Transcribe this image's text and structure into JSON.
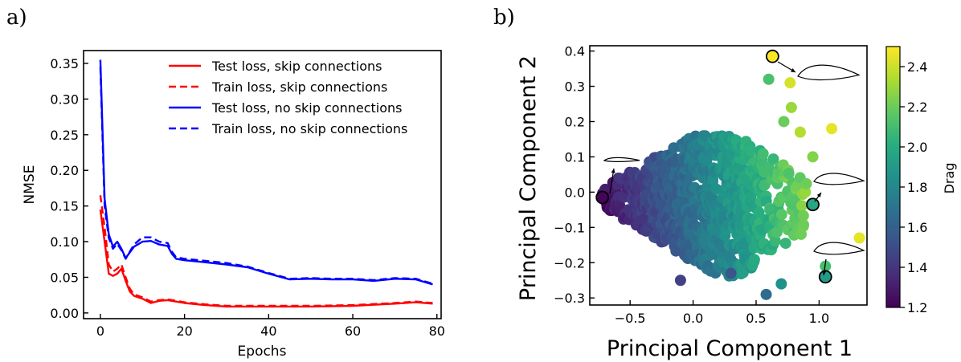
{
  "chart_data": [
    {
      "type": "line",
      "panel_label": "a)",
      "xlabel": "Epochs",
      "ylabel": "NMSE",
      "xlim": [
        -4,
        81
      ],
      "ylim": [
        -0.008,
        0.368
      ],
      "xticks": [
        0,
        20,
        40,
        60,
        80
      ],
      "yticks": [
        0.0,
        0.05,
        0.1,
        0.15,
        0.2,
        0.25,
        0.3,
        0.35
      ],
      "ytick_labels": [
        "0.00",
        "0.05",
        "0.10",
        "0.15",
        "0.20",
        "0.25",
        "0.30",
        "0.35"
      ],
      "grid": false,
      "legend": "top-right",
      "series": [
        {
          "name": "Test loss, skip connections",
          "color": "#ff0000",
          "dash": "solid",
          "x": [
            0,
            1,
            2,
            3,
            4,
            5,
            6,
            7,
            8,
            10,
            12,
            14,
            16,
            18,
            20,
            25,
            30,
            40,
            50,
            60,
            70,
            75,
            79
          ],
          "y": [
            0.145,
            0.1,
            0.055,
            0.052,
            0.055,
            0.062,
            0.045,
            0.03,
            0.024,
            0.02,
            0.014,
            0.017,
            0.018,
            0.016,
            0.014,
            0.011,
            0.009,
            0.009,
            0.009,
            0.01,
            0.013,
            0.015,
            0.013
          ]
        },
        {
          "name": "Train loss, skip connections",
          "color": "#ff0000",
          "dash": "dashed",
          "x": [
            0,
            1,
            2,
            3,
            4,
            5,
            6,
            7,
            8,
            10,
            12,
            14,
            16,
            18,
            20,
            25,
            30,
            40,
            50,
            60,
            70,
            75,
            79
          ],
          "y": [
            0.165,
            0.12,
            0.068,
            0.058,
            0.062,
            0.068,
            0.05,
            0.034,
            0.026,
            0.022,
            0.016,
            0.018,
            0.019,
            0.017,
            0.015,
            0.012,
            0.01,
            0.01,
            0.01,
            0.011,
            0.014,
            0.016,
            0.014
          ]
        },
        {
          "name": "Test loss, no skip connections",
          "color": "#0000ff",
          "dash": "solid",
          "x": [
            0,
            1,
            2,
            3,
            4,
            5,
            6,
            7,
            8,
            10,
            12,
            14,
            16,
            17,
            18,
            20,
            25,
            30,
            35,
            40,
            45,
            50,
            55,
            60,
            65,
            70,
            75,
            79
          ],
          "y": [
            0.355,
            0.16,
            0.11,
            0.093,
            0.1,
            0.09,
            0.077,
            0.085,
            0.093,
            0.1,
            0.101,
            0.096,
            0.094,
            0.083,
            0.076,
            0.074,
            0.071,
            0.068,
            0.064,
            0.055,
            0.047,
            0.048,
            0.047,
            0.047,
            0.045,
            0.048,
            0.047,
            0.04
          ]
        },
        {
          "name": "Train loss, no skip connections",
          "color": "#0000ff",
          "dash": "dashed",
          "x": [
            0,
            1,
            2,
            3,
            4,
            5,
            6,
            7,
            8,
            10,
            12,
            14,
            16,
            17,
            18,
            20,
            25,
            30,
            35,
            40,
            45,
            50,
            55,
            60,
            65,
            70,
            75,
            79
          ],
          "y": [
            0.345,
            0.15,
            0.105,
            0.09,
            0.097,
            0.088,
            0.076,
            0.086,
            0.096,
            0.106,
            0.106,
            0.1,
            0.098,
            0.086,
            0.078,
            0.076,
            0.073,
            0.07,
            0.065,
            0.056,
            0.048,
            0.049,
            0.048,
            0.048,
            0.046,
            0.049,
            0.048,
            0.041
          ]
        }
      ]
    },
    {
      "type": "scatter",
      "panel_label": "b)",
      "xlabel": "Principal Component 1",
      "ylabel": "Principal Component 2",
      "xlim": [
        -0.82,
        1.38
      ],
      "ylim": [
        -0.32,
        0.415
      ],
      "xticks": [
        -0.5,
        0.0,
        0.5,
        1.0
      ],
      "xtick_labels": [
        "−0.5",
        "0.0",
        "0.5",
        "1.0"
      ],
      "yticks": [
        -0.3,
        -0.2,
        -0.1,
        0.0,
        0.1,
        0.2,
        0.3,
        0.4
      ],
      "ytick_labels": [
        "−0.3",
        "−0.2",
        "−0.1",
        "0.0",
        "0.1",
        "0.2",
        "0.3",
        "0.4"
      ],
      "grid": false,
      "colorbar": {
        "label": "Drag",
        "colormap": "viridis",
        "range": [
          1.2,
          2.5
        ],
        "ticks": [
          1.2,
          1.4,
          1.6,
          1.8,
          2.0,
          2.2,
          2.4
        ],
        "tick_labels": [
          "1.2",
          "1.4",
          "1.6",
          "1.8",
          "2.0",
          "2.2",
          "2.4"
        ]
      },
      "highlighted_points": [
        {
          "x": 0.63,
          "y": 0.385,
          "drag": 2.5
        },
        {
          "x": -0.72,
          "y": -0.015,
          "drag": 1.22
        },
        {
          "x": 0.95,
          "y": -0.035,
          "drag": 1.97
        },
        {
          "x": 1.05,
          "y": -0.24,
          "drag": 1.9
        }
      ],
      "outlier_points": [
        {
          "x": 0.6,
          "y": 0.32,
          "drag": 2.12
        },
        {
          "x": 0.77,
          "y": 0.31,
          "drag": 2.42
        },
        {
          "x": 1.1,
          "y": 0.18,
          "drag": 2.45
        },
        {
          "x": 1.32,
          "y": -0.13,
          "drag": 2.45
        },
        {
          "x": 0.78,
          "y": 0.24,
          "drag": 2.3
        },
        {
          "x": 0.85,
          "y": 0.17,
          "drag": 2.35
        },
        {
          "x": 0.72,
          "y": 0.2,
          "drag": 2.2
        },
        {
          "x": 0.95,
          "y": 0.1,
          "drag": 2.25
        },
        {
          "x": 1.05,
          "y": -0.21,
          "drag": 2.1
        },
        {
          "x": 0.7,
          "y": -0.26,
          "drag": 1.85
        },
        {
          "x": 0.58,
          "y": -0.29,
          "drag": 1.65
        },
        {
          "x": -0.1,
          "y": -0.25,
          "drag": 1.45
        },
        {
          "x": 0.3,
          "y": -0.23,
          "drag": 1.55
        }
      ],
      "cloud": {
        "point_count": 900,
        "description": "dense cloud; drag increases with Principal Component 1"
      }
    }
  ]
}
